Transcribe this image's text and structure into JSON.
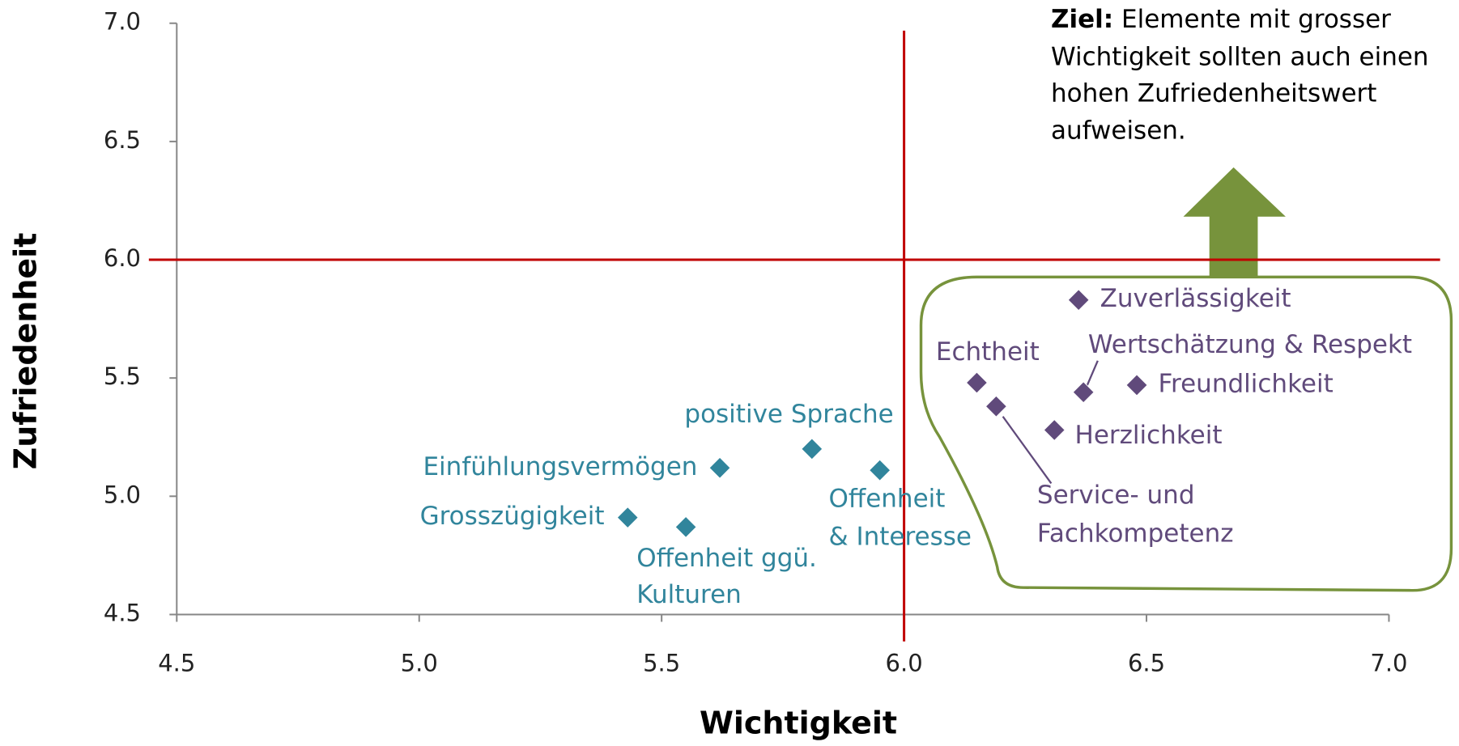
{
  "chart_data": {
    "type": "scatter",
    "x_label": "Wichtigkeit",
    "y_label": "Zufriedenheit",
    "xlim": [
      4.5,
      7.0
    ],
    "ylim": [
      4.5,
      7.0
    ],
    "xticks": [
      4.5,
      {
        "value": 5.0,
        "label": "5.0"
      },
      5.5,
      {
        "value": 6.0,
        "label": "6.0"
      },
      6.5,
      {
        "value": 7.0,
        "label": "7.0"
      }
    ],
    "yticks": [
      4.5,
      {
        "value": 5.0,
        "label": "5.0"
      },
      5.5,
      {
        "value": 6.0,
        "label": "6.0"
      },
      6.5,
      {
        "value": 7.0,
        "label": "7.0"
      }
    ],
    "reference_lines": {
      "x": 6.0,
      "y": 6.0,
      "color": "#c00000"
    },
    "annotation": {
      "bold": "Ziel:",
      "lines": [
        " Elemente mit grosser",
        "Wichtigkeit sollten auch einen",
        "hohen Zufriedenheitswert",
        "aufweisen."
      ]
    },
    "series": [
      {
        "color": "#31859c",
        "labels": [
          [
            "Grosszügigkeit"
          ],
          [
            "Offenheit ggü.",
            "Kulturen"
          ],
          [
            "Einfühlungsvermögen"
          ],
          [
            "positive Sprache"
          ],
          [
            "Offenheit",
            "& Interesse"
          ]
        ],
        "x": [
          5.43,
          5.55,
          5.62,
          5.81,
          5.95
        ],
        "values": [
          4.91,
          4.87,
          5.12,
          5.2,
          5.11
        ]
      },
      {
        "color": "#604a7b",
        "labels": [
          [
            "Zuverlässigkeit"
          ],
          [
            "Echtheit"
          ],
          [
            "Wertschätzung & Respekt"
          ],
          [
            "Freundlichkeit"
          ],
          [
            "Herzlichkeit"
          ],
          [
            "Service- und",
            "Fachkompetenz"
          ]
        ],
        "x": [
          6.36,
          6.15,
          6.37,
          6.48,
          6.31,
          6.19
        ],
        "values": [
          5.83,
          5.48,
          5.44,
          5.47,
          5.28,
          5.38
        ]
      }
    ]
  }
}
